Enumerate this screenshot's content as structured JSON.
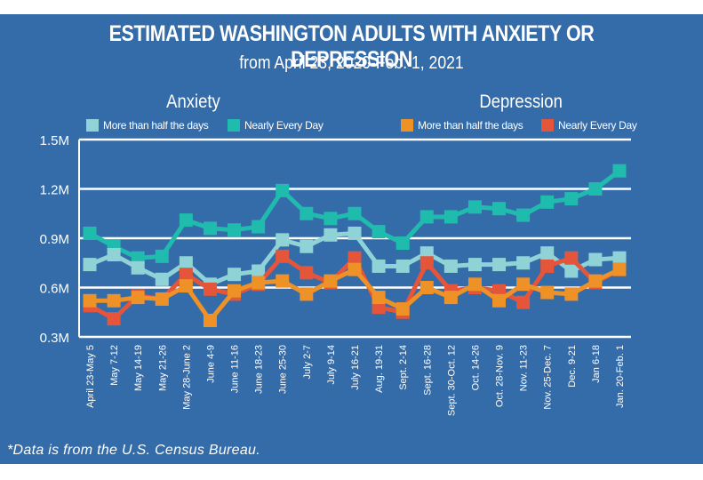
{
  "header": {
    "title": "ESTIMATED WASHINGTON ADULTS WITH ANXIETY OR DEPRESSION",
    "subtitle": "from April 23, 2020-Feb. 1, 2021"
  },
  "legend": {
    "anxiety_title": "Anxiety",
    "depression_title": "Depression",
    "items": [
      {
        "label": "More than half the days",
        "color": "#8fd3d6"
      },
      {
        "label": "Nearly Every Day",
        "color": "#1fbcae"
      },
      {
        "label": "More than half the days",
        "color": "#ee9127"
      },
      {
        "label": "Nearly Every Day",
        "color": "#e4553a"
      }
    ]
  },
  "footnote": "*Data is from the U.S. Census Bureau.",
  "colors": {
    "background": "#346ba9",
    "grid": "#ffffff"
  },
  "chart_data": {
    "type": "line",
    "title": "ESTIMATED WASHINGTON ADULTS WITH ANXIETY OR DEPRESSION",
    "subtitle": "from April 23, 2020-Feb. 1, 2021",
    "xlabel": "",
    "ylabel": "",
    "ylim": [
      0.3,
      1.5
    ],
    "yticks": [
      0.3,
      0.6,
      0.9,
      1.2,
      1.5
    ],
    "ytick_labels": [
      "0.3M",
      "0.6M",
      "0.9M",
      "1.2M",
      "1.5M"
    ],
    "grid": true,
    "legend_position": "top",
    "categories": [
      "April 23-May 5",
      "May 7-12",
      "May 14-19",
      "May 21-26",
      "May 28-June 2",
      "June 4-9",
      "June 11-16",
      "June 18-23",
      "June 25-30",
      "July 2-7",
      "July 9-14",
      "July 16-21",
      "Aug. 19-31",
      "Sept. 2-14",
      "Sept. 16-28",
      "Sept. 30-Oct. 12",
      "Oct. 14-26",
      "Oct. 28-Nov. 9",
      "Nov. 11-23",
      "Nov. 25-Dec. 7",
      "Dec. 9-21",
      "Jan 6-18",
      "Jan. 20-Feb. 1"
    ],
    "series": [
      {
        "name": "Anxiety - More than half the days",
        "color": "#8fd3d6",
        "values": [
          0.74,
          0.8,
          0.72,
          0.65,
          0.75,
          0.62,
          0.68,
          0.7,
          0.89,
          0.85,
          0.92,
          0.93,
          0.73,
          0.73,
          0.81,
          0.73,
          0.74,
          0.74,
          0.75,
          0.81,
          0.7,
          0.77,
          0.78
        ]
      },
      {
        "name": "Anxiety - Nearly Every Day",
        "color": "#1fbcae",
        "values": [
          0.93,
          0.85,
          0.78,
          0.79,
          1.01,
          0.96,
          0.95,
          0.97,
          1.19,
          1.05,
          1.02,
          1.05,
          0.94,
          0.87,
          1.03,
          1.03,
          1.09,
          1.08,
          1.04,
          1.12,
          1.14,
          1.2,
          1.31
        ]
      },
      {
        "name": "Depression - More than half the days",
        "color": "#ee9127",
        "values": [
          0.52,
          0.52,
          0.54,
          0.53,
          0.61,
          0.4,
          0.58,
          0.63,
          0.64,
          0.56,
          0.64,
          0.71,
          0.54,
          0.47,
          0.6,
          0.54,
          0.62,
          0.52,
          0.62,
          0.57,
          0.56,
          0.64,
          0.71
        ]
      },
      {
        "name": "Depression - Nearly Every Day",
        "color": "#e4553a",
        "values": [
          0.49,
          0.41,
          0.55,
          0.53,
          0.68,
          0.59,
          0.56,
          0.62,
          0.79,
          0.69,
          0.63,
          0.78,
          0.48,
          0.45,
          0.75,
          0.58,
          0.6,
          0.58,
          0.51,
          0.73,
          0.78,
          0.63,
          0.71
        ]
      }
    ]
  }
}
